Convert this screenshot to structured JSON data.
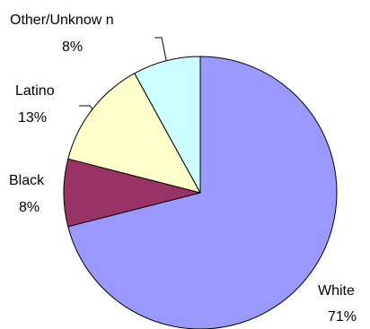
{
  "chart_data": {
    "type": "pie",
    "title": "",
    "slices": [
      {
        "name": "White",
        "value_label": "71%",
        "value": 71,
        "color": "#9999ff"
      },
      {
        "name": "Black",
        "value_label": "8%",
        "value": 8,
        "color": "#993366"
      },
      {
        "name": "Latino",
        "value_label": "13%",
        "value": 13,
        "color": "#ffffcc"
      },
      {
        "name": "Other/Unknow n",
        "value_label": "8%",
        "value": 8,
        "color": "#ccffff"
      }
    ],
    "start_angle_deg": 0,
    "direction": "clockwise",
    "legend": "none",
    "labels": "outside with leader lines"
  }
}
